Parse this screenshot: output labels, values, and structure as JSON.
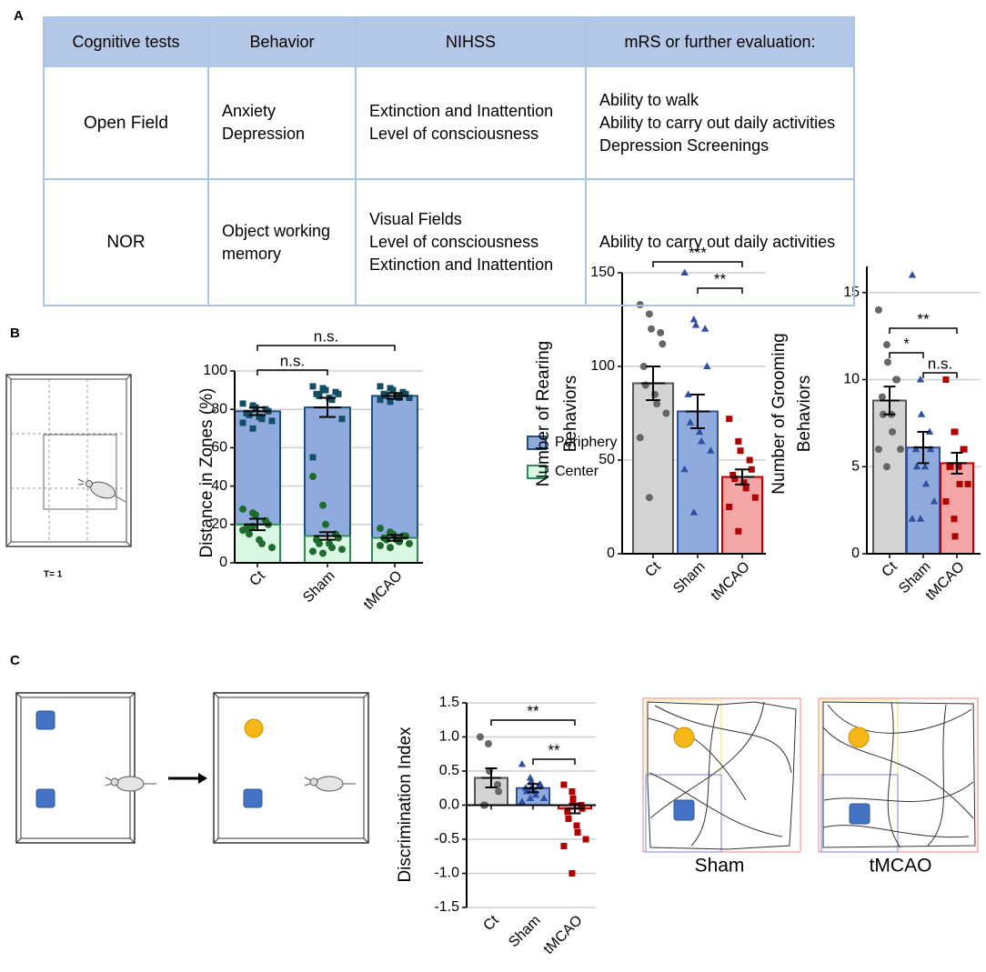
{
  "panels": [
    "A",
    "B",
    "C"
  ],
  "table": {
    "header": [
      "Cognitive tests",
      "Behavior",
      "NIHSS",
      "mRS or further evaluation:"
    ],
    "rows": [
      [
        "Open Field",
        [
          "Anxiety",
          "Depression"
        ],
        [
          "Extinction and Inattention",
          "Level of consciousness"
        ],
        [
          "Ability to walk",
          "Ability to carry out daily activities",
          "Depression Screenings"
        ]
      ],
      [
        "NOR",
        [
          "Object working memory"
        ],
        [
          "Visual Fields",
          "Level of consciousness",
          "Extinction and Inattention"
        ],
        [
          "Ability to carry out daily activities"
        ]
      ]
    ]
  },
  "open_field_timer": "T= 1",
  "track_labels": [
    "Sham",
    "tMCAO"
  ],
  "chart_data": [
    {
      "type": "bar",
      "ylabel": [
        "Distance in Zones (%)"
      ],
      "categories": [
        "Ct",
        "Sham",
        "tMCAO"
      ],
      "ylim": [
        0,
        100
      ],
      "yticks": [
        0,
        20,
        40,
        60,
        80,
        100
      ],
      "grid": true,
      "legend": "right",
      "series": [
        {
          "name": "Periphery",
          "color": "#8faadc",
          "edge_color": "#1f4e79",
          "point_color": "#124f66",
          "marker": "square",
          "values": [
            79,
            81,
            87
          ],
          "errors": [
            2,
            5,
            1.5
          ],
          "points": [
            [
              83,
              82,
              81,
              80,
              79,
              78,
              77,
              76,
              75,
              74,
              73,
              70
            ],
            [
              92,
              91,
              90,
              89,
              88,
              88,
              87,
              86,
              85,
              75,
              55,
              90
            ],
            [
              92,
              91,
              90,
              89,
              88,
              88,
              87,
              87,
              86,
              86,
              85,
              84
            ]
          ]
        },
        {
          "name": "Center",
          "color": "#d9f7e3",
          "edge_color": "#2e8b57",
          "point_color": "#1e6b2e",
          "marker": "circle",
          "values": [
            20,
            14,
            13
          ],
          "errors": [
            3,
            2,
            1.5
          ],
          "points": [
            [
              28,
              26,
              25,
              22,
              20,
              18,
              15,
              12,
              10,
              8,
              17,
              19
            ],
            [
              45,
              30,
              20,
              15,
              13,
              12,
              10,
              10,
              8,
              7,
              6,
              5
            ],
            [
              18,
              16,
              15,
              14,
              14,
              13,
              12,
              12,
              11,
              10,
              9,
              8
            ]
          ]
        }
      ],
      "annotations": [
        {
          "text": "n.s.",
          "from": 0,
          "to": 2
        },
        {
          "text": "n.s.",
          "from": 0,
          "to": 1
        }
      ]
    },
    {
      "type": "bar",
      "ylabel": [
        "Number of Rearing",
        "Behaviors"
      ],
      "categories": [
        "Ct",
        "Sham",
        "tMCAO"
      ],
      "ylim": [
        0,
        150
      ],
      "yticks": [
        0,
        50,
        100,
        150
      ],
      "grid": true,
      "values": [
        91,
        76,
        41
      ],
      "errors": [
        9,
        9,
        4
      ],
      "colors": [
        "#d3d3d3",
        "#8faadc",
        "#f4a6a6"
      ],
      "edge_colors": [
        "#555555",
        "#2f4fa0",
        "#c00000"
      ],
      "point_colors": [
        "#666666",
        "#2f4fa0",
        "#b00000"
      ],
      "markers": [
        "circle",
        "triangle",
        "square"
      ],
      "points": [
        [
          133,
          128,
          120,
          118,
          112,
          100,
          90,
          85,
          80,
          75,
          62,
          30
        ],
        [
          150,
          125,
          122,
          120,
          100,
          85,
          70,
          65,
          60,
          55,
          45,
          22
        ],
        [
          72,
          60,
          55,
          50,
          45,
          42,
          40,
          38,
          35,
          30,
          25,
          12
        ]
      ],
      "annotations": [
        {
          "text": "***",
          "from": 0,
          "to": 2
        },
        {
          "text": "**",
          "from": 1,
          "to": 2
        }
      ]
    },
    {
      "type": "bar",
      "ylabel": [
        "Number of Grooming",
        "Behaviors"
      ],
      "categories": [
        "Ct",
        "Sham",
        "tMCAO"
      ],
      "ylim": [
        0,
        16.5
      ],
      "yticks": [
        0,
        5,
        10,
        15
      ],
      "grid": true,
      "values": [
        8.8,
        6.1,
        5.2
      ],
      "errors": [
        0.8,
        0.9,
        0.6
      ],
      "colors": [
        "#d3d3d3",
        "#8faadc",
        "#f4a6a6"
      ],
      "edge_colors": [
        "#555555",
        "#2f4fa0",
        "#c00000"
      ],
      "point_colors": [
        "#666666",
        "#2f4fa0",
        "#b00000"
      ],
      "markers": [
        "circle",
        "triangle",
        "square"
      ],
      "points": [
        [
          14,
          12,
          11,
          10,
          10,
          9,
          8,
          8,
          7,
          6,
          6,
          5
        ],
        [
          16,
          10,
          8,
          7,
          6,
          6,
          5,
          5,
          4,
          3,
          2,
          2
        ],
        [
          10,
          7,
          7,
          6,
          6,
          5,
          5,
          5,
          4,
          4,
          3,
          2,
          1
        ]
      ],
      "annotations": [
        {
          "text": "**",
          "from": 0,
          "to": 2
        },
        {
          "text": "*",
          "from": 0,
          "to": 1
        },
        {
          "text": "n.s.",
          "from": 1,
          "to": 2
        }
      ]
    },
    {
      "type": "bar",
      "ylabel": [
        "Discrimination Index"
      ],
      "categories": [
        "Ct",
        "Sham",
        "tMCAO"
      ],
      "ylim": [
        -1.5,
        1.5
      ],
      "yticks": [
        -1.5,
        {
          "value": -1,
          "label": "-1.0"
        },
        -0.5,
        {
          "value": 0,
          "label": "0.0"
        },
        0.5,
        {
          "value": 1,
          "label": "1.0"
        },
        1.5
      ],
      "grid": true,
      "values": [
        0.4,
        0.25,
        -0.05
      ],
      "errors": [
        0.14,
        0.06,
        0.07
      ],
      "colors": [
        "#d3d3d3",
        "#8faadc",
        "#f4a6a6"
      ],
      "edge_colors": [
        "#555555",
        "#2f4fa0",
        "#c00000"
      ],
      "point_colors": [
        "#666666",
        "#2f4fa0",
        "#b00000"
      ],
      "markers": [
        "circle",
        "triangle",
        "square"
      ],
      "points": [
        [
          1,
          0.9,
          0.5,
          0.3,
          0.2,
          0,
          0
        ],
        [
          0.6,
          0.4,
          0.35,
          0.3,
          0.3,
          0.25,
          0.2,
          0.2,
          0.15,
          0.1,
          0.05,
          0.1,
          0.25
        ],
        [
          0.3,
          0.2,
          0.1,
          0,
          -0.05,
          -0.1,
          -0.2,
          -0.3,
          -0.4,
          -0.5,
          -0.6,
          -1,
          0.05
        ]
      ],
      "annotations": [
        {
          "text": "**",
          "from": 0,
          "to": 2
        },
        {
          "text": "**",
          "from": 1,
          "to": 2
        }
      ]
    }
  ]
}
